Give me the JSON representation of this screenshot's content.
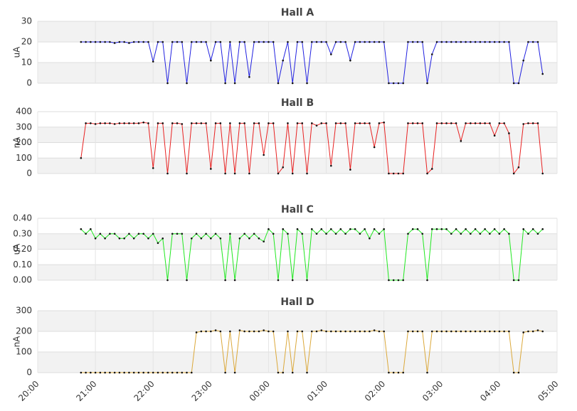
{
  "chart_data": [
    {
      "type": "line",
      "title": "Hall A",
      "y_label": "uA",
      "color": "#2020e0",
      "x": [
        "20:45",
        "20:50",
        "20:55",
        "21:00",
        "21:05",
        "21:10",
        "21:15",
        "21:20",
        "21:25",
        "21:30",
        "21:35",
        "21:40",
        "21:45",
        "21:50",
        "21:55",
        "22:00",
        "22:05",
        "22:10",
        "22:15",
        "22:20",
        "22:25",
        "22:30",
        "22:35",
        "22:40",
        "22:45",
        "22:50",
        "22:55",
        "23:00",
        "23:05",
        "23:10",
        "23:15",
        "23:20",
        "23:25",
        "23:30",
        "23:35",
        "23:40",
        "23:45",
        "23:50",
        "23:55",
        "00:00",
        "00:05",
        "00:10",
        "00:15",
        "00:20",
        "00:25",
        "00:30",
        "00:35",
        "00:40",
        "00:45",
        "00:50",
        "00:55",
        "01:00",
        "01:05",
        "01:10",
        "01:15",
        "01:20",
        "01:25",
        "01:30",
        "01:35",
        "01:40",
        "01:45",
        "01:50",
        "01:55",
        "02:00",
        "02:05",
        "02:10",
        "02:15",
        "02:20",
        "02:25",
        "02:30",
        "02:35",
        "02:40",
        "02:45",
        "02:50",
        "02:55",
        "03:00",
        "03:05",
        "03:10",
        "03:15",
        "03:20",
        "03:25",
        "03:30",
        "03:35",
        "03:40",
        "03:45",
        "03:50",
        "03:55",
        "04:00",
        "04:05",
        "04:10",
        "04:15",
        "04:20",
        "04:25",
        "04:30",
        "04:35",
        "04:40",
        "04:45"
      ],
      "values": [
        20,
        20,
        20,
        20,
        20,
        20,
        20,
        19.5,
        20,
        20,
        19.5,
        20,
        20,
        20,
        20,
        10.5,
        20,
        20,
        0,
        20,
        20,
        20,
        0,
        20,
        20,
        20,
        20,
        11,
        20,
        20,
        0,
        20,
        0,
        20,
        20,
        3,
        20,
        20,
        20,
        20,
        20,
        0,
        11,
        20,
        0,
        20,
        20,
        0,
        20,
        20,
        20,
        20,
        14,
        20,
        20,
        20,
        11,
        20,
        20,
        20,
        20,
        20,
        20,
        20,
        0,
        0,
        0,
        0,
        20,
        20,
        20,
        20,
        0,
        14,
        20,
        20,
        20,
        20,
        20,
        20,
        20,
        20,
        20,
        20,
        20,
        20,
        20,
        20,
        20,
        20,
        0,
        0,
        11,
        20,
        20,
        20,
        4.5
      ],
      "xlim": [
        "20:00",
        "05:00"
      ],
      "xticks": [
        "20:00",
        "21:00",
        "22:00",
        "23:00",
        "00:00",
        "01:00",
        "02:00",
        "03:00",
        "04:00",
        "05:00"
      ],
      "ylim": [
        0,
        30
      ],
      "yticks": [
        0,
        10,
        20,
        30
      ],
      "grid": true,
      "bands": true
    },
    {
      "type": "line",
      "title": "Hall B",
      "y_label": "nA",
      "color": "#e82020",
      "x": [
        "20:45",
        "20:50",
        "20:55",
        "21:00",
        "21:05",
        "21:10",
        "21:15",
        "21:20",
        "21:25",
        "21:30",
        "21:35",
        "21:40",
        "21:45",
        "21:50",
        "21:55",
        "22:00",
        "22:05",
        "22:10",
        "22:15",
        "22:20",
        "22:25",
        "22:30",
        "22:35",
        "22:40",
        "22:45",
        "22:50",
        "22:55",
        "23:00",
        "23:05",
        "23:10",
        "23:15",
        "23:20",
        "23:25",
        "23:30",
        "23:35",
        "23:40",
        "23:45",
        "23:50",
        "23:55",
        "00:00",
        "00:05",
        "00:10",
        "00:15",
        "00:20",
        "00:25",
        "00:30",
        "00:35",
        "00:40",
        "00:45",
        "00:50",
        "00:55",
        "01:00",
        "01:05",
        "01:10",
        "01:15",
        "01:20",
        "01:25",
        "01:30",
        "01:35",
        "01:40",
        "01:45",
        "01:50",
        "01:55",
        "02:00",
        "02:05",
        "02:10",
        "02:15",
        "02:20",
        "02:25",
        "02:30",
        "02:35",
        "02:40",
        "02:45",
        "02:50",
        "02:55",
        "03:00",
        "03:05",
        "03:10",
        "03:15",
        "03:20",
        "03:25",
        "03:30",
        "03:35",
        "03:40",
        "03:45",
        "03:50",
        "03:55",
        "04:00",
        "04:05",
        "04:10",
        "04:15",
        "04:20",
        "04:25",
        "04:30",
        "04:35",
        "04:40",
        "04:45"
      ],
      "values": [
        100,
        325,
        325,
        320,
        325,
        325,
        325,
        320,
        325,
        325,
        325,
        325,
        325,
        330,
        325,
        35,
        325,
        325,
        0,
        325,
        325,
        320,
        0,
        325,
        325,
        325,
        325,
        30,
        325,
        325,
        0,
        325,
        0,
        325,
        325,
        0,
        325,
        325,
        120,
        325,
        325,
        0,
        40,
        325,
        0,
        325,
        325,
        0,
        325,
        310,
        325,
        325,
        50,
        325,
        325,
        325,
        25,
        325,
        325,
        325,
        325,
        170,
        325,
        330,
        0,
        0,
        0,
        0,
        325,
        325,
        325,
        325,
        0,
        30,
        325,
        325,
        325,
        325,
        325,
        210,
        325,
        325,
        325,
        325,
        325,
        325,
        245,
        325,
        325,
        260,
        0,
        40,
        320,
        325,
        325,
        325,
        0
      ],
      "xlim": [
        "20:00",
        "05:00"
      ],
      "xticks": [
        "20:00",
        "21:00",
        "22:00",
        "23:00",
        "00:00",
        "01:00",
        "02:00",
        "03:00",
        "04:00",
        "05:00"
      ],
      "ylim": [
        0,
        400
      ],
      "yticks": [
        0,
        100,
        200,
        300,
        400
      ],
      "grid": true,
      "bands": true
    },
    {
      "type": "line",
      "title": "Hall C",
      "y_label": "uA",
      "color": "#20e820",
      "x": [
        "20:45",
        "20:50",
        "20:55",
        "21:00",
        "21:05",
        "21:10",
        "21:15",
        "21:20",
        "21:25",
        "21:30",
        "21:35",
        "21:40",
        "21:45",
        "21:50",
        "21:55",
        "22:00",
        "22:05",
        "22:10",
        "22:15",
        "22:20",
        "22:25",
        "22:30",
        "22:35",
        "22:40",
        "22:45",
        "22:50",
        "22:55",
        "23:00",
        "23:05",
        "23:10",
        "23:15",
        "23:20",
        "23:25",
        "23:30",
        "23:35",
        "23:40",
        "23:45",
        "23:50",
        "23:55",
        "00:00",
        "00:05",
        "00:10",
        "00:15",
        "00:20",
        "00:25",
        "00:30",
        "00:35",
        "00:40",
        "00:45",
        "00:50",
        "00:55",
        "01:00",
        "01:05",
        "01:10",
        "01:15",
        "01:20",
        "01:25",
        "01:30",
        "01:35",
        "01:40",
        "01:45",
        "01:50",
        "01:55",
        "02:00",
        "02:05",
        "02:10",
        "02:15",
        "02:20",
        "02:25",
        "02:30",
        "02:35",
        "02:40",
        "02:45",
        "02:50",
        "02:55",
        "03:00",
        "03:05",
        "03:10",
        "03:15",
        "03:20",
        "03:25",
        "03:30",
        "03:35",
        "03:40",
        "03:45",
        "03:50",
        "03:55",
        "04:00",
        "04:05",
        "04:10",
        "04:15",
        "04:20",
        "04:25",
        "04:30",
        "04:35",
        "04:40",
        "04:45"
      ],
      "values": [
        0.33,
        0.3,
        0.33,
        0.27,
        0.3,
        0.27,
        0.3,
        0.3,
        0.27,
        0.27,
        0.3,
        0.27,
        0.3,
        0.3,
        0.27,
        0.3,
        0.24,
        0.27,
        0,
        0.3,
        0.3,
        0.3,
        0,
        0.27,
        0.3,
        0.27,
        0.3,
        0.27,
        0.3,
        0.27,
        0,
        0.3,
        0,
        0.27,
        0.3,
        0.27,
        0.3,
        0.27,
        0.25,
        0.33,
        0.3,
        0,
        0.33,
        0.3,
        0,
        0.33,
        0.3,
        0,
        0.33,
        0.3,
        0.33,
        0.3,
        0.33,
        0.3,
        0.33,
        0.3,
        0.33,
        0.33,
        0.3,
        0.33,
        0.27,
        0.33,
        0.3,
        0.33,
        0,
        0,
        0,
        0,
        0.3,
        0.33,
        0.33,
        0.3,
        0,
        0.33,
        0.33,
        0.33,
        0.33,
        0.3,
        0.33,
        0.3,
        0.33,
        0.3,
        0.33,
        0.3,
        0.33,
        0.3,
        0.33,
        0.3,
        0.33,
        0.3,
        0,
        0,
        0.33,
        0.3,
        0.33,
        0.3,
        0.33
      ],
      "xlim": [
        "20:00",
        "05:00"
      ],
      "xticks": [
        "20:00",
        "21:00",
        "22:00",
        "23:00",
        "00:00",
        "01:00",
        "02:00",
        "03:00",
        "04:00",
        "05:00"
      ],
      "ylim": [
        0,
        0.4
      ],
      "yticks": [
        {
          "value": 0,
          "label": "0.00"
        },
        {
          "value": 0.1,
          "label": "0.10"
        },
        {
          "value": 0.2,
          "label": "0.20"
        },
        {
          "value": 0.3,
          "label": "0.30"
        },
        {
          "value": 0.4,
          "label": "0.40"
        }
      ],
      "grid": true,
      "bands": true
    },
    {
      "type": "line",
      "title": "Hall D",
      "y_label": "nA",
      "color": "#dba83a",
      "x": [
        "20:45",
        "20:50",
        "20:55",
        "21:00",
        "21:05",
        "21:10",
        "21:15",
        "21:20",
        "21:25",
        "21:30",
        "21:35",
        "21:40",
        "21:45",
        "21:50",
        "21:55",
        "22:00",
        "22:05",
        "22:10",
        "22:15",
        "22:20",
        "22:25",
        "22:30",
        "22:35",
        "22:40",
        "22:45",
        "22:50",
        "22:55",
        "23:00",
        "23:05",
        "23:10",
        "23:15",
        "23:20",
        "23:25",
        "23:30",
        "23:35",
        "23:40",
        "23:45",
        "23:50",
        "23:55",
        "00:00",
        "00:05",
        "00:10",
        "00:15",
        "00:20",
        "00:25",
        "00:30",
        "00:35",
        "00:40",
        "00:45",
        "00:50",
        "00:55",
        "01:00",
        "01:05",
        "01:10",
        "01:15",
        "01:20",
        "01:25",
        "01:30",
        "01:35",
        "01:40",
        "01:45",
        "01:50",
        "01:55",
        "02:00",
        "02:05",
        "02:10",
        "02:15",
        "02:20",
        "02:25",
        "02:30",
        "02:35",
        "02:40",
        "02:45",
        "02:50",
        "02:55",
        "03:00",
        "03:05",
        "03:10",
        "03:15",
        "03:20",
        "03:25",
        "03:30",
        "03:35",
        "03:40",
        "03:45",
        "03:50",
        "03:55",
        "04:00",
        "04:05",
        "04:10",
        "04:15",
        "04:20",
        "04:25",
        "04:30",
        "04:35",
        "04:40",
        "04:45"
      ],
      "values": [
        0,
        0,
        0,
        0,
        0,
        0,
        0,
        0,
        0,
        0,
        0,
        0,
        0,
        0,
        0,
        0,
        0,
        0,
        0,
        0,
        0,
        0,
        0,
        0,
        195,
        200,
        200,
        200,
        205,
        200,
        0,
        200,
        0,
        205,
        200,
        200,
        200,
        200,
        205,
        200,
        200,
        0,
        0,
        200,
        0,
        200,
        200,
        0,
        200,
        200,
        205,
        200,
        200,
        200,
        200,
        200,
        200,
        200,
        200,
        200,
        200,
        205,
        200,
        200,
        0,
        0,
        0,
        0,
        200,
        200,
        200,
        200,
        0,
        200,
        200,
        200,
        200,
        200,
        200,
        200,
        200,
        200,
        200,
        200,
        200,
        200,
        200,
        200,
        200,
        200,
        0,
        0,
        195,
        200,
        200,
        205,
        200
      ],
      "xlim": [
        "20:00",
        "05:00"
      ],
      "xticks": [
        "20:00",
        "21:00",
        "22:00",
        "23:00",
        "00:00",
        "01:00",
        "02:00",
        "03:00",
        "04:00",
        "05:00"
      ],
      "ylim": [
        0,
        300
      ],
      "yticks": [
        0,
        100,
        200,
        300
      ],
      "grid": true,
      "bands": true,
      "x_tick_labels": true
    }
  ]
}
